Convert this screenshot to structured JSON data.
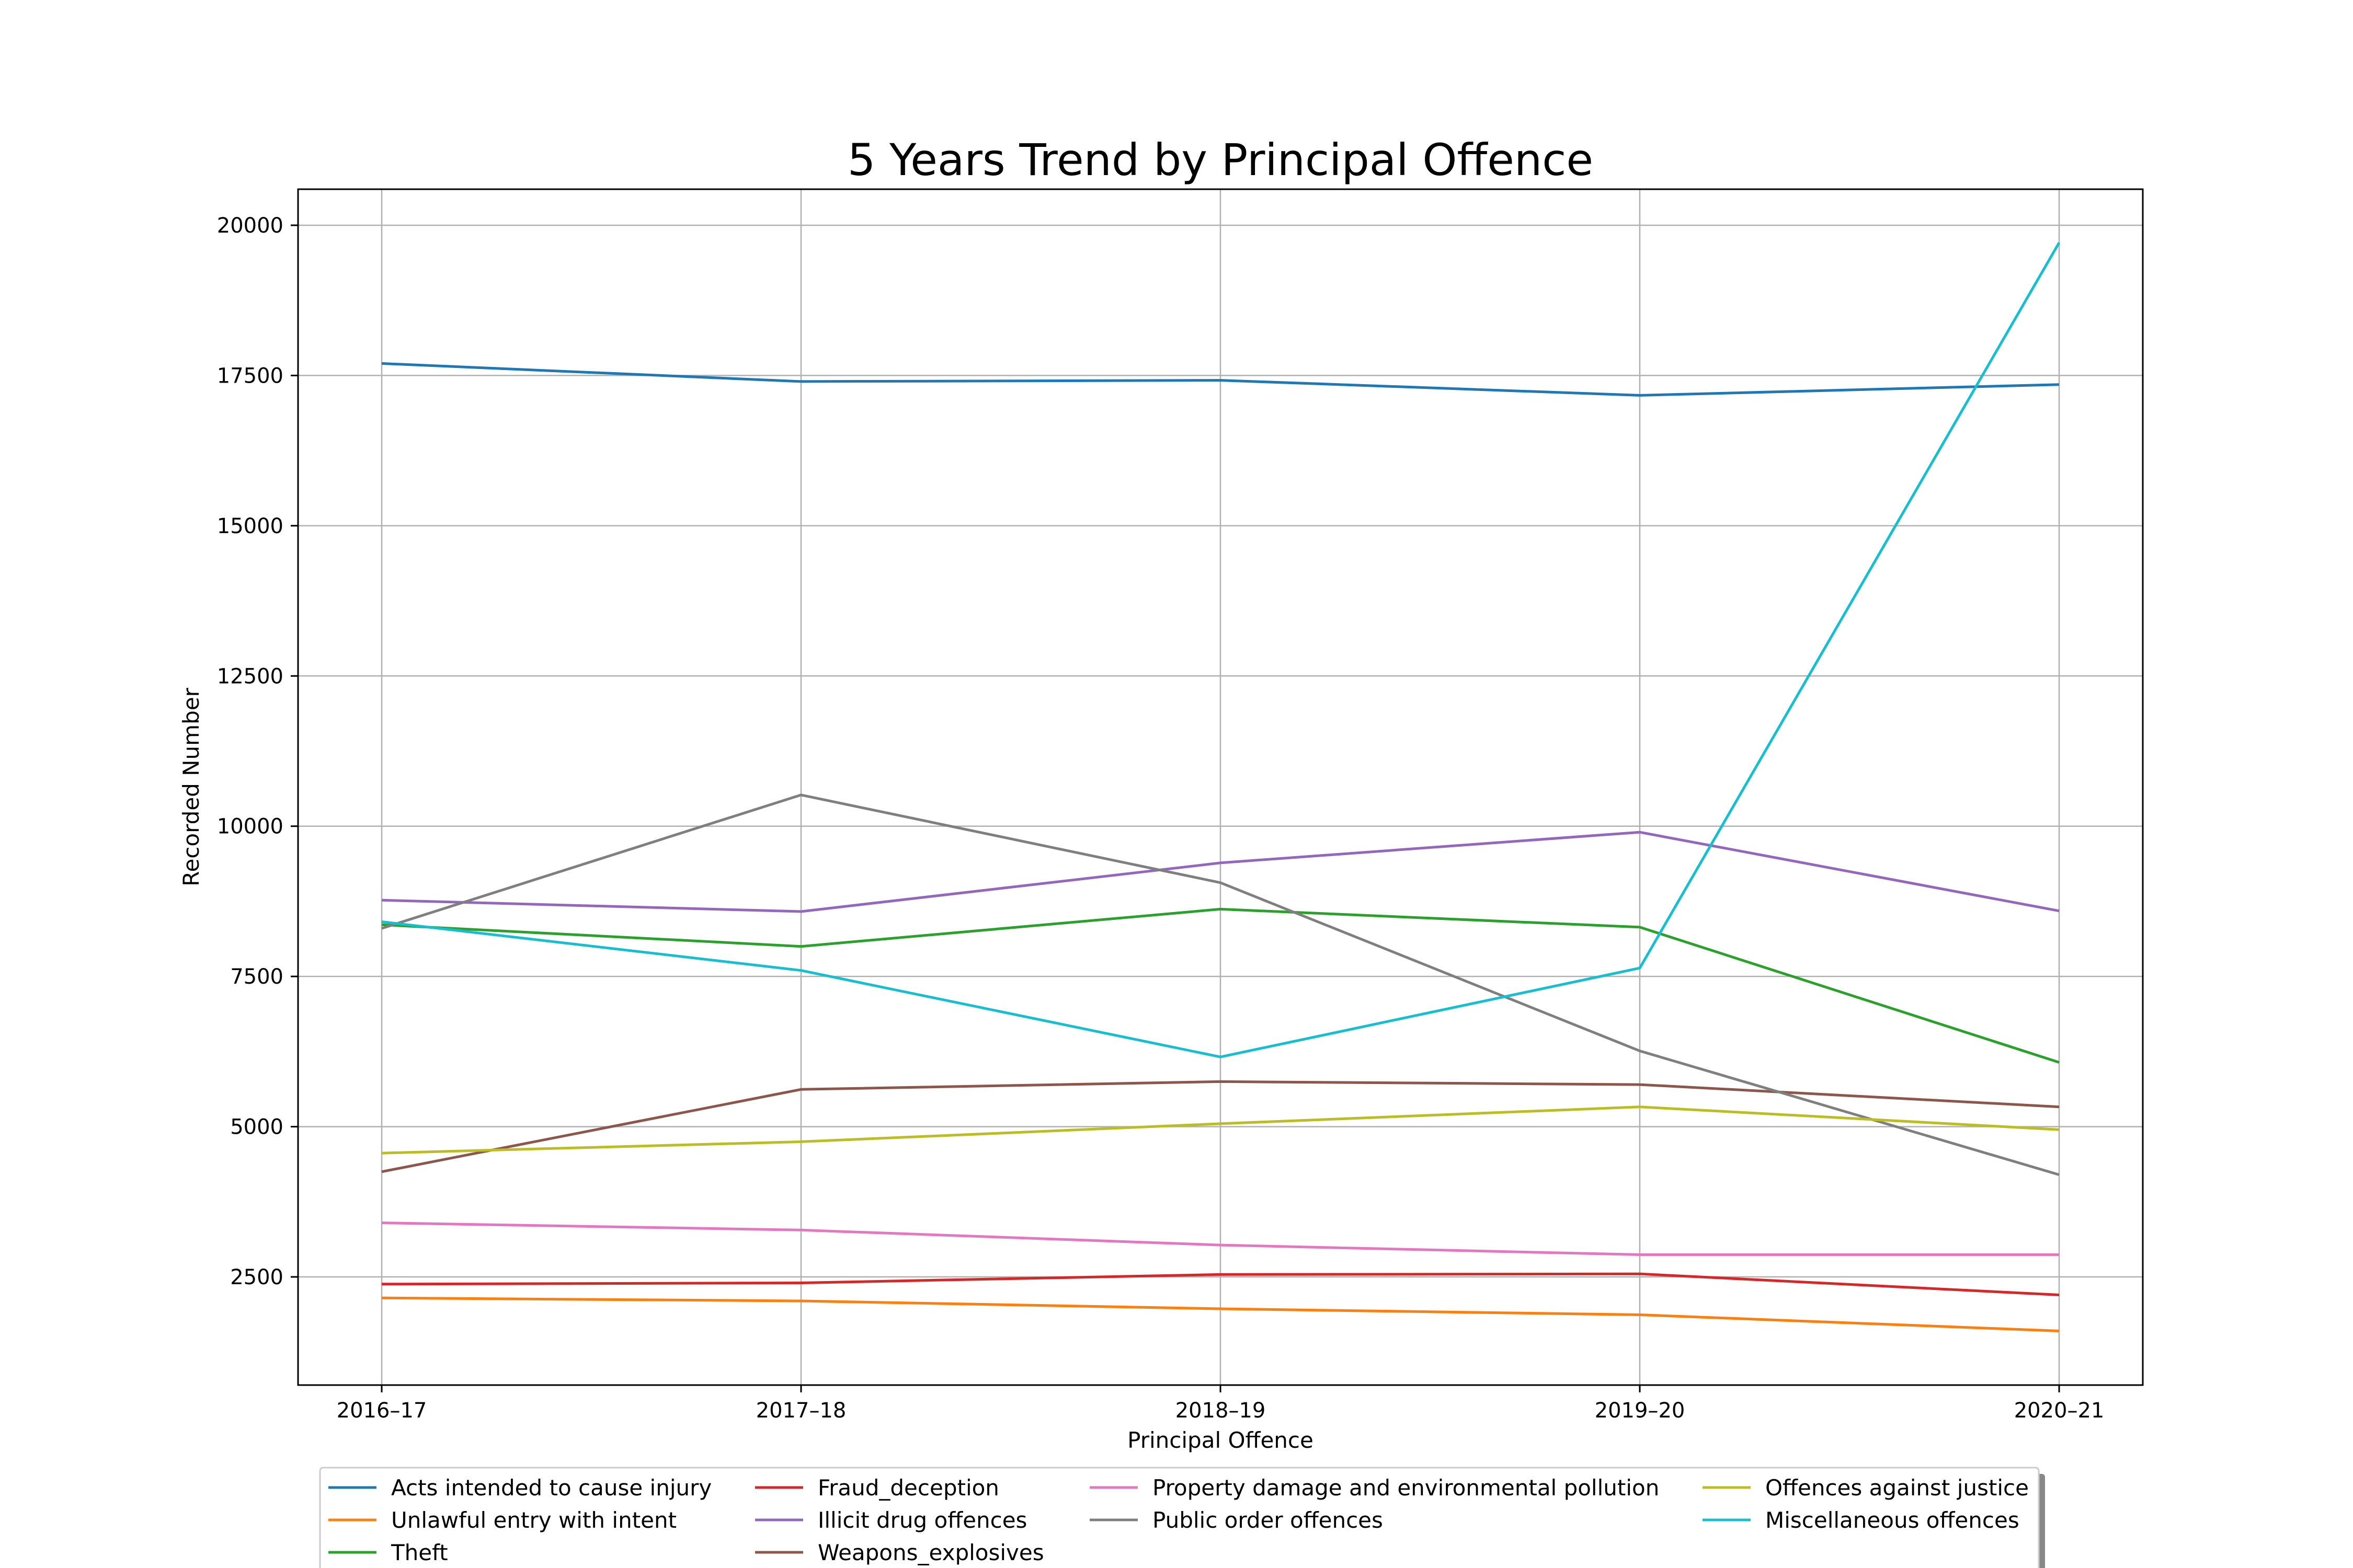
{
  "chart_data": {
    "type": "line",
    "title": "5 Years Trend by Principal Offence",
    "xlabel": "Principal Offence",
    "ylabel": "Recorded Number",
    "categories": [
      "2016–17",
      "2017–18",
      "2018–19",
      "2019–20",
      "2020–21"
    ],
    "ylim": [
      700,
      20600
    ],
    "yticks": [
      2500,
      5000,
      7500,
      10000,
      12500,
      15000,
      17500,
      20000
    ],
    "grid": true,
    "legend_position": "bottom",
    "series": [
      {
        "name": "Acts intended to cause injury",
        "color": "#1f77b4",
        "values": [
          17700,
          17400,
          17420,
          17170,
          17350
        ]
      },
      {
        "name": "Unlawful entry with intent",
        "color": "#ff7f0e",
        "values": [
          2150,
          2100,
          1970,
          1870,
          1600
        ]
      },
      {
        "name": "Theft",
        "color": "#2ca02c",
        "values": [
          8360,
          8000,
          8620,
          8320,
          6070
        ]
      },
      {
        "name": "Fraud_deception",
        "color": "#d62728",
        "values": [
          2380,
          2400,
          2540,
          2550,
          2200
        ]
      },
      {
        "name": "Illicit drug offences",
        "color": "#9467bd",
        "values": [
          8770,
          8580,
          9390,
          9900,
          8590
        ]
      },
      {
        "name": "Weapons_explosives",
        "color": "#8c564b",
        "values": [
          4250,
          5620,
          5750,
          5700,
          5330
        ]
      },
      {
        "name": "Property damage and environmental pollution",
        "color": "#e377c2",
        "values": [
          3400,
          3280,
          3030,
          2870,
          2870
        ]
      },
      {
        "name": "Public order offences",
        "color": "#7f7f7f",
        "values": [
          8300,
          10520,
          9060,
          6260,
          4200
        ]
      },
      {
        "name": "Offences against justice",
        "color": "#bcbd22",
        "values": [
          4560,
          4750,
          5050,
          5330,
          4950
        ]
      },
      {
        "name": "Miscellaneous offences",
        "color": "#17becf",
        "values": [
          8410,
          7600,
          6160,
          7640,
          19710
        ]
      }
    ]
  }
}
